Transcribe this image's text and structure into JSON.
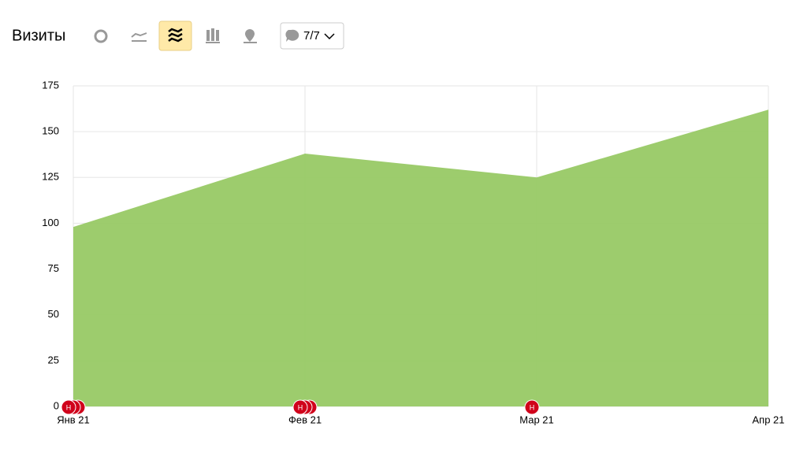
{
  "toolbar": {
    "notes_filter": "7/7"
  },
  "chart_data": {
    "type": "area",
    "title": "Визиты",
    "categories": [
      "Янв 21",
      "Фев 21",
      "Мар 21",
      "Апр 21"
    ],
    "series": [
      {
        "color": "#98c965",
        "values": [
          98,
          138,
          125,
          162
        ]
      }
    ],
    "ylim": [
      0,
      175
    ],
    "yticks": [
      0,
      25,
      50,
      75,
      100,
      125,
      150,
      175
    ],
    "grid": true,
    "annotations": [
      {
        "x": "Янв 21",
        "label": "Н",
        "count": 3
      },
      {
        "x": "Фев 21",
        "label": "Н",
        "count": 3
      },
      {
        "x": "Мар 21",
        "label": "Н",
        "count": 1
      }
    ]
  }
}
